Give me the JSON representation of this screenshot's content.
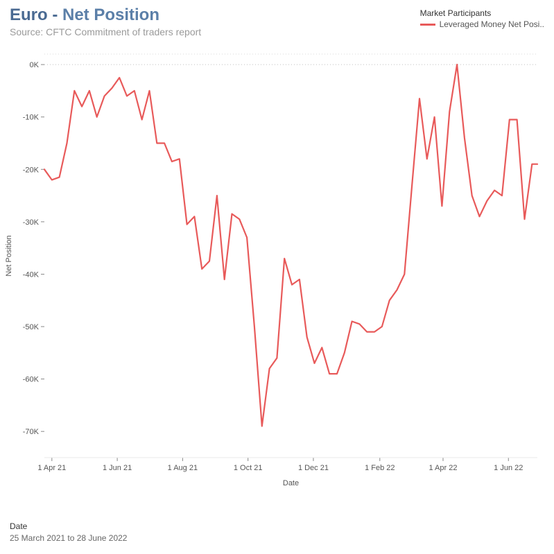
{
  "title_part1": "Euro",
  "title_sep": " - ",
  "title_part2": "Net Position",
  "subtitle": "Source: CFTC Commitment of traders report",
  "legend": {
    "title": "Market Participants",
    "item": "Leveraged Money Net Posi.."
  },
  "footer": {
    "label": "Date",
    "range": "25 March 2021 to 28 June 2022"
  },
  "chart": {
    "type": "line",
    "line_color": "#e85a5a",
    "line_width": 2.2,
    "background_color": "#ffffff",
    "grid_color": "#d8d8d8",
    "zero_line_color": "#c0c0c0",
    "tick_color": "#888888",
    "axis_label_color": "#555555",
    "axis_font_size": 11,
    "y_axis_title": "Net Position",
    "x_axis_title": "Date",
    "ylim": [
      -75000,
      2000
    ],
    "y_ticks": [
      0,
      -10000,
      -20000,
      -30000,
      -40000,
      -50000,
      -60000,
      -70000
    ],
    "y_tick_labels": [
      "0K",
      "-10K",
      "-20K",
      "-30K",
      "-40K",
      "-50K",
      "-60K",
      "-70K"
    ],
    "x_axis": {
      "start": "2021-03-25",
      "end": "2022-06-28",
      "ticks": [
        "2021-04-01",
        "2021-06-01",
        "2021-08-01",
        "2021-10-01",
        "2021-12-01",
        "2022-02-01",
        "2022-04-01",
        "2022-06-01"
      ],
      "tick_labels": [
        "1 Apr 21",
        "1 Jun 21",
        "1 Aug 21",
        "1 Oct 21",
        "1 Dec 21",
        "1 Feb 22",
        "1 Apr 22",
        "1 Jun 22"
      ]
    },
    "series": [
      {
        "name": "Leveraged Money Net Position",
        "color": "#e85a5a",
        "data": [
          [
            "2021-03-25",
            -20000
          ],
          [
            "2021-04-01",
            -22000
          ],
          [
            "2021-04-08",
            -21500
          ],
          [
            "2021-04-15",
            -15000
          ],
          [
            "2021-04-22",
            -5000
          ],
          [
            "2021-04-29",
            -8000
          ],
          [
            "2021-05-06",
            -5000
          ],
          [
            "2021-05-13",
            -10000
          ],
          [
            "2021-05-20",
            -6000
          ],
          [
            "2021-05-27",
            -4500
          ],
          [
            "2021-06-03",
            -2500
          ],
          [
            "2021-06-10",
            -6000
          ],
          [
            "2021-06-17",
            -5000
          ],
          [
            "2021-06-24",
            -10500
          ],
          [
            "2021-07-01",
            -5000
          ],
          [
            "2021-07-08",
            -15000
          ],
          [
            "2021-07-15",
            -15000
          ],
          [
            "2021-07-22",
            -18500
          ],
          [
            "2021-07-29",
            -18000
          ],
          [
            "2021-08-05",
            -30500
          ],
          [
            "2021-08-12",
            -29000
          ],
          [
            "2021-08-19",
            -39000
          ],
          [
            "2021-08-26",
            -37500
          ],
          [
            "2021-09-02",
            -25000
          ],
          [
            "2021-09-09",
            -41000
          ],
          [
            "2021-09-16",
            -28500
          ],
          [
            "2021-09-23",
            -29500
          ],
          [
            "2021-09-30",
            -33000
          ],
          [
            "2021-10-07",
            -50000
          ],
          [
            "2021-10-14",
            -69000
          ],
          [
            "2021-10-21",
            -58000
          ],
          [
            "2021-10-28",
            -56000
          ],
          [
            "2021-11-04",
            -37000
          ],
          [
            "2021-11-11",
            -42000
          ],
          [
            "2021-11-18",
            -41000
          ],
          [
            "2021-11-25",
            -52000
          ],
          [
            "2021-12-02",
            -57000
          ],
          [
            "2021-12-09",
            -54000
          ],
          [
            "2021-12-16",
            -59000
          ],
          [
            "2021-12-23",
            -59000
          ],
          [
            "2021-12-30",
            -55000
          ],
          [
            "2022-01-06",
            -49000
          ],
          [
            "2022-01-13",
            -49500
          ],
          [
            "2022-01-20",
            -51000
          ],
          [
            "2022-01-27",
            -51000
          ],
          [
            "2022-02-03",
            -50000
          ],
          [
            "2022-02-10",
            -45000
          ],
          [
            "2022-02-17",
            -43000
          ],
          [
            "2022-02-24",
            -40000
          ],
          [
            "2022-03-03",
            -23000
          ],
          [
            "2022-03-10",
            -6500
          ],
          [
            "2022-03-17",
            -18000
          ],
          [
            "2022-03-24",
            -10000
          ],
          [
            "2022-03-31",
            -27000
          ],
          [
            "2022-04-07",
            -9000
          ],
          [
            "2022-04-14",
            0
          ],
          [
            "2022-04-21",
            -14000
          ],
          [
            "2022-04-28",
            -25000
          ],
          [
            "2022-05-05",
            -29000
          ],
          [
            "2022-05-12",
            -26000
          ],
          [
            "2022-05-19",
            -24000
          ],
          [
            "2022-05-26",
            -25000
          ],
          [
            "2022-06-02",
            -10500
          ],
          [
            "2022-06-09",
            -10500
          ],
          [
            "2022-06-16",
            -29500
          ],
          [
            "2022-06-23",
            -19000
          ],
          [
            "2022-06-28",
            -19000
          ]
        ]
      }
    ]
  }
}
